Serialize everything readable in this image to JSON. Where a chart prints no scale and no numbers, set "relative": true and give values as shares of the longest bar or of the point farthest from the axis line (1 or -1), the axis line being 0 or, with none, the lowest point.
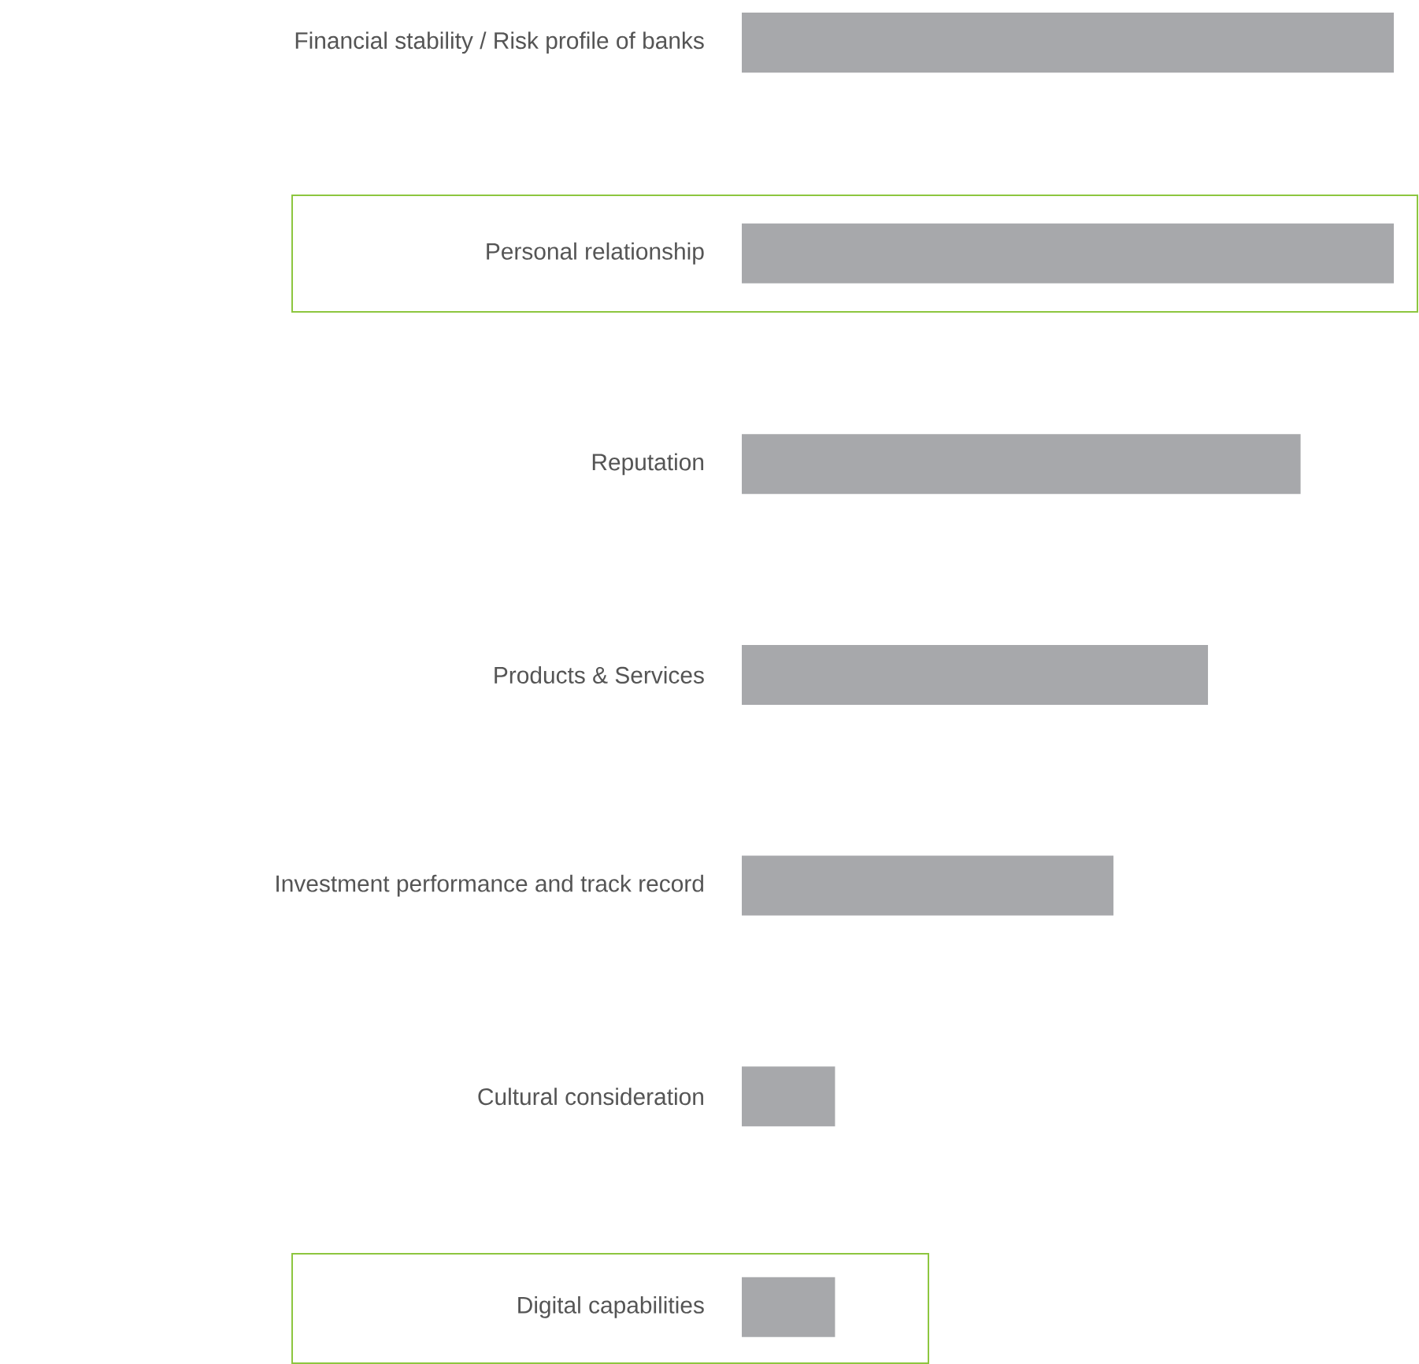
{
  "chart_data": {
    "type": "bar",
    "orientation": "horizontal",
    "relative": true,
    "categories": [
      "Financial stability / Risk profile of banks",
      "Personal relationship",
      "Reputation",
      "Products & Services",
      "Investment performance and track record",
      "Cultural consideration",
      "Digital capabilities"
    ],
    "values": [
      1,
      1,
      0.857,
      0.715,
      0.57,
      0.143,
      0.143
    ],
    "color": "#a7a8ab"
  }
}
